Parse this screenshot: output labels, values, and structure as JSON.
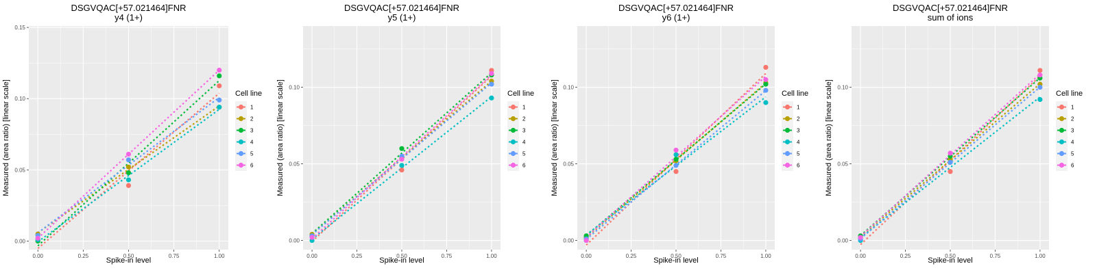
{
  "colors": {
    "1": "#F8766D",
    "2": "#B79F00",
    "3": "#00BA38",
    "4": "#00BFC4",
    "5": "#619CFF",
    "6": "#F564E3",
    "panel_bg": "#EBEBEB",
    "grid": "#FFFFFF"
  },
  "chart_data": [
    {
      "type": "scatter",
      "title": "DSGVQAC[+57.021464]FNR",
      "subtitle": "y4 (1+)",
      "xlabel": "Spike-in level",
      "ylabel": "Measured (area ratio) [linear scale]",
      "xlim": [
        -0.05,
        1.05
      ],
      "ylim": [
        -0.006,
        0.151
      ],
      "xticks": [
        0.0,
        0.25,
        0.5,
        0.75,
        1.0
      ],
      "xtick_labels": [
        "0.00",
        "0.25",
        "0.50",
        "0.75",
        "1.00"
      ],
      "yticks": [
        0.0,
        0.05,
        0.1,
        0.15
      ],
      "ytick_labels": [
        "0.00",
        "0.05",
        "0.10",
        "0.15"
      ],
      "grid": true,
      "legend": {
        "title": "Cell line",
        "position": "right",
        "entries": [
          "1",
          "2",
          "3",
          "4",
          "5",
          "6"
        ]
      },
      "x": [
        0.0,
        0.5,
        1.0
      ],
      "series": [
        {
          "name": "1",
          "values": [
            0.0,
            0.039,
            0.109
          ]
        },
        {
          "name": "2",
          "values": [
            0.005,
            0.052,
            0.094
          ]
        },
        {
          "name": "3",
          "values": [
            0.0,
            0.048,
            0.116
          ]
        },
        {
          "name": "4",
          "values": [
            0.001,
            0.043,
            0.094
          ]
        },
        {
          "name": "5",
          "values": [
            0.004,
            0.057,
            0.099
          ]
        },
        {
          "name": "6",
          "values": [
            0.002,
            0.061,
            0.12
          ]
        }
      ],
      "trend": "dotted linear fit per series"
    },
    {
      "type": "scatter",
      "title": "DSGVQAC[+57.021464]FNR",
      "subtitle": "y5 (1+)",
      "xlabel": "Spike-in level",
      "ylabel": "Measured (area ratio) [linear scale]",
      "xlim": [
        -0.05,
        1.05
      ],
      "ylim": [
        -0.006,
        0.14
      ],
      "xticks": [
        0.0,
        0.25,
        0.5,
        0.75,
        1.0
      ],
      "xtick_labels": [
        "0.00",
        "0.25",
        "0.50",
        "0.75",
        "1.00"
      ],
      "yticks": [
        0.0,
        0.05,
        0.1
      ],
      "ytick_labels": [
        "0.00",
        "0.05",
        "0.10"
      ],
      "grid": true,
      "legend": {
        "title": "Cell line",
        "position": "right",
        "entries": [
          "1",
          "2",
          "3",
          "4",
          "5",
          "6"
        ]
      },
      "x": [
        0.0,
        0.5,
        1.0
      ],
      "series": [
        {
          "name": "1",
          "values": [
            0.003,
            0.046,
            0.111
          ]
        },
        {
          "name": "2",
          "values": [
            0.004,
            0.054,
            0.104
          ]
        },
        {
          "name": "3",
          "values": [
            0.003,
            0.06,
            0.108
          ]
        },
        {
          "name": "4",
          "values": [
            0.0,
            0.049,
            0.093
          ]
        },
        {
          "name": "5",
          "values": [
            0.003,
            0.055,
            0.102
          ]
        },
        {
          "name": "6",
          "values": [
            0.002,
            0.053,
            0.109
          ]
        }
      ],
      "trend": "dotted linear fit per series"
    },
    {
      "type": "scatter",
      "title": "DSGVQAC[+57.021464]FNR",
      "subtitle": "y6 (1+)",
      "xlabel": "Spike-in level",
      "ylabel": "Measured (area ratio) [linear scale]",
      "xlim": [
        -0.05,
        1.05
      ],
      "ylim": [
        -0.006,
        0.14
      ],
      "xticks": [
        0.0,
        0.25,
        0.5,
        0.75,
        1.0
      ],
      "xtick_labels": [
        "0.00",
        "0.25",
        "0.50",
        "0.75",
        "1.00"
      ],
      "yticks": [
        0.0,
        0.05,
        0.1
      ],
      "ytick_labels": [
        "0.00",
        "0.05",
        "0.10"
      ],
      "grid": true,
      "legend": {
        "title": "Cell line",
        "position": "right",
        "entries": [
          "1",
          "2",
          "3",
          "4",
          "5",
          "6"
        ]
      },
      "x": [
        0.0,
        0.5,
        1.0
      ],
      "series": [
        {
          "name": "1",
          "values": [
            0.001,
            0.045,
            0.113
          ]
        },
        {
          "name": "2",
          "values": [
            0.002,
            0.052,
            0.103
          ]
        },
        {
          "name": "3",
          "values": [
            0.003,
            0.053,
            0.102
          ]
        },
        {
          "name": "4",
          "values": [
            0.0,
            0.056,
            0.09
          ]
        },
        {
          "name": "5",
          "values": [
            0.001,
            0.049,
            0.098
          ]
        },
        {
          "name": "6",
          "values": [
            0.0,
            0.059,
            0.105
          ]
        }
      ],
      "trend": "dotted linear fit per series"
    },
    {
      "type": "scatter",
      "title": "DSGVQAC[+57.021464]FNR",
      "subtitle": "sum of ions",
      "xlabel": "Spike-in level",
      "ylabel": "Measured (area ratio) [linear scale]",
      "xlim": [
        -0.05,
        1.05
      ],
      "ylim": [
        -0.006,
        0.14
      ],
      "xticks": [
        0.0,
        0.25,
        0.5,
        0.75,
        1.0
      ],
      "xtick_labels": [
        "0.00",
        "0.25",
        "0.50",
        "0.75",
        "1.00"
      ],
      "yticks": [
        0.0,
        0.05,
        0.1
      ],
      "ytick_labels": [
        "0.00",
        "0.05",
        "0.10"
      ],
      "grid": true,
      "legend": {
        "title": "Cell line",
        "position": "right",
        "entries": [
          "1",
          "2",
          "3",
          "4",
          "5",
          "6"
        ]
      },
      "x": [
        0.0,
        0.5,
        1.0
      ],
      "series": [
        {
          "name": "1",
          "values": [
            0.001,
            0.045,
            0.111
          ]
        },
        {
          "name": "2",
          "values": [
            0.002,
            0.053,
            0.102
          ]
        },
        {
          "name": "3",
          "values": [
            0.003,
            0.055,
            0.106
          ]
        },
        {
          "name": "4",
          "values": [
            0.0,
            0.051,
            0.092
          ]
        },
        {
          "name": "5",
          "values": [
            0.001,
            0.051,
            0.1
          ]
        },
        {
          "name": "6",
          "values": [
            0.002,
            0.057,
            0.108
          ]
        }
      ],
      "trend": "dotted linear fit per series"
    }
  ]
}
